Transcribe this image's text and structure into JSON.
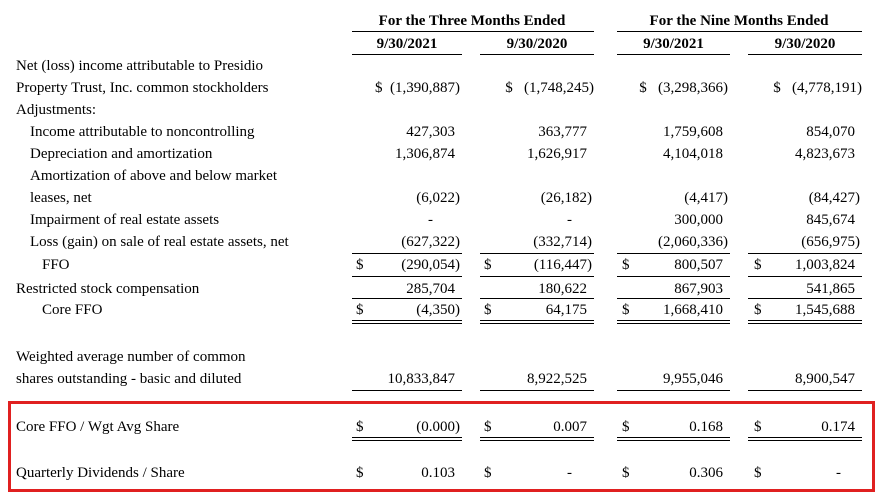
{
  "header": {
    "three_months": "For the Three Months Ended",
    "nine_months": "For the Nine Months Ended",
    "cols": [
      "9/30/2021",
      "9/30/2020",
      "9/30/2021",
      "9/30/2020"
    ]
  },
  "rows": {
    "net_income": {
      "label1": "Net (loss) income attributable to Presidio",
      "label2": "Property Trust, Inc. common stockholders",
      "values": [
        "$  (1,390,887)",
        "$   (1,748,245)",
        "$   (3,298,366)",
        "$   (4,778,191)"
      ]
    },
    "adjustments": {
      "label": "Adjustments:"
    },
    "noncontrolling": {
      "label": "Income attributable to noncontrolling",
      "values": [
        "427,303",
        "363,777",
        "1,759,608",
        "854,070"
      ]
    },
    "depreciation": {
      "label": "Depreciation and amortization",
      "values": [
        "1,306,874",
        "1,626,917",
        "4,104,018",
        "4,823,673"
      ]
    },
    "amortization": {
      "label1": "Amortization of above and below market",
      "label2": "leases, net",
      "values": [
        "(6,022)",
        "(26,182)",
        "(4,417)",
        "(84,427)"
      ]
    },
    "impairment": {
      "label": "Impairment of real estate assets",
      "values": [
        "-",
        "-",
        "300,000",
        "845,674"
      ]
    },
    "loss_gain": {
      "label": "Loss (gain) on sale of real estate assets, net",
      "values": [
        "(627,322)",
        "(332,714)",
        "(2,060,336)",
        "(656,975)"
      ]
    },
    "ffo": {
      "label": "FFO",
      "values": [
        "(290,054)",
        "(116,447)",
        "800,507",
        "1,003,824"
      ]
    },
    "restricted": {
      "label": "Restricted stock compensation",
      "values": [
        "285,704",
        "180,622",
        "867,903",
        "541,865"
      ]
    },
    "core_ffo": {
      "label": "Core FFO",
      "values": [
        "(4,350)",
        "64,175",
        "1,668,410",
        "1,545,688"
      ]
    },
    "weighted": {
      "label1": "Weighted average number of common",
      "label2": "shares outstanding - basic and diluted",
      "values": [
        "10,833,847",
        "8,922,525",
        "9,955,046",
        "8,900,547"
      ]
    },
    "core_ffo_share": {
      "label": "Core FFO / Wgt Avg Share",
      "values": [
        "(0.000)",
        "0.007",
        "0.168",
        "0.174"
      ]
    },
    "dividends": {
      "label": "Quarterly Dividends / Share",
      "values": [
        "0.103",
        "-",
        "0.306",
        "-"
      ]
    }
  },
  "dollar_sign": "$",
  "colors": {
    "highlight_box": "#e02020"
  }
}
